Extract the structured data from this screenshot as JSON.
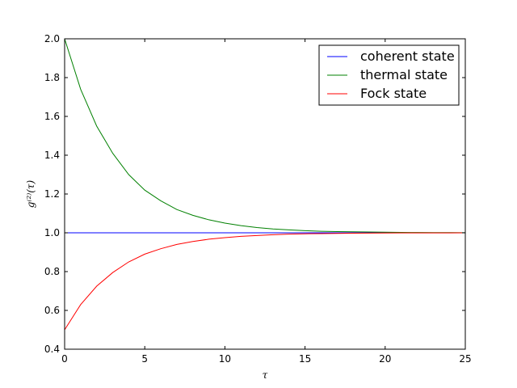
{
  "chart_data": {
    "type": "line",
    "title": "",
    "xlabel": "τ",
    "ylabel": "g⁽²⁾(τ)",
    "xlim": [
      0,
      25
    ],
    "ylim": [
      0.4,
      2.0
    ],
    "x_ticks": [
      "0",
      "5",
      "10",
      "15",
      "20",
      "25"
    ],
    "y_ticks": [
      "0.4",
      "0.6",
      "0.8",
      "1.0",
      "1.2",
      "1.4",
      "1.6",
      "1.8",
      "2.0"
    ],
    "grid": false,
    "legend_position": "top-right",
    "series": [
      {
        "name": "coherent state",
        "color": "#0000ff",
        "x": [
          0,
          2.5,
          5,
          7.5,
          10,
          12.5,
          15,
          17.5,
          20,
          22.5,
          25
        ],
        "y": [
          1.0,
          1.0,
          1.0,
          1.0,
          1.0,
          1.0,
          1.0,
          1.0,
          1.0,
          1.0,
          1.0
        ]
      },
      {
        "name": "thermal state",
        "color": "#008000",
        "x": [
          0,
          1,
          2,
          3,
          4,
          5,
          6,
          7,
          8,
          9,
          10,
          11,
          12,
          13,
          14,
          15,
          16,
          17,
          18,
          19,
          20,
          21,
          22,
          23,
          24,
          25
        ],
        "y": [
          2.0,
          1.74,
          1.55,
          1.41,
          1.3,
          1.22,
          1.165,
          1.12,
          1.09,
          1.067,
          1.05,
          1.037,
          1.027,
          1.02,
          1.015,
          1.011,
          1.008,
          1.006,
          1.005,
          1.004,
          1.003,
          1.002,
          1.0015,
          1.001,
          1.0008,
          1.0006
        ]
      },
      {
        "name": "Fock state",
        "color": "#ff0000",
        "x": [
          0,
          1,
          2,
          3,
          4,
          5,
          6,
          7,
          8,
          9,
          10,
          11,
          12,
          13,
          14,
          15,
          16,
          17,
          18,
          19,
          20,
          21,
          22,
          23,
          24,
          25
        ],
        "y": [
          0.5,
          0.63,
          0.725,
          0.795,
          0.85,
          0.89,
          0.918,
          0.94,
          0.955,
          0.967,
          0.975,
          0.982,
          0.986,
          0.99,
          0.993,
          0.995,
          0.996,
          0.997,
          0.998,
          0.9985,
          0.999,
          0.9993,
          0.9995,
          0.9996,
          0.9997,
          0.9998
        ]
      }
    ]
  }
}
